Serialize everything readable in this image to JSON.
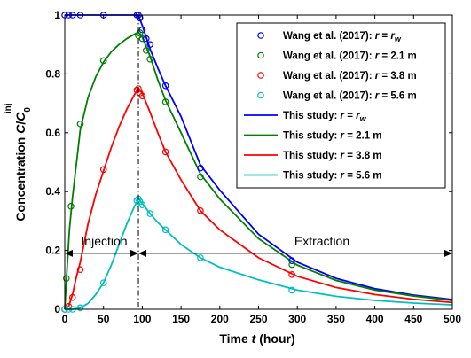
{
  "chart_data": {
    "type": "line",
    "xlabel_prefix": "Time ",
    "xlabel_var": "t",
    "xlabel_suffix": " (hour)",
    "ylabel_main": "Concentration ",
    "ylabel_var": "C",
    "ylabel_sep": "/",
    "ylabel_var2": "C",
    "ylabel_sub": "0",
    "ylabel_sup": "inj",
    "xlim": [
      0,
      500
    ],
    "ylim": [
      0,
      1
    ],
    "xticks": [
      0,
      50,
      100,
      150,
      200,
      250,
      300,
      350,
      400,
      450,
      500
    ],
    "yticks": [
      0,
      0.2,
      0.4,
      0.6,
      0.8,
      1
    ],
    "ytick_labels": [
      "0",
      "0.2",
      "0.4",
      "0.6",
      "0.8",
      "1"
    ],
    "legend_position": "top-right",
    "annotations": {
      "injection_label": "Injection",
      "extraction_label": "Extraction",
      "injection_range": [
        0,
        95
      ],
      "extraction_range": [
        95,
        500
      ],
      "arrow_y": 0.19,
      "switch_time": 95
    },
    "series": [
      {
        "kind": "markers",
        "legend_prefix": "Wang et al. (2017): ",
        "legend_var": "r",
        "legend_eq": " = ",
        "legend_var2": "r",
        "legend_sub": "w",
        "legend_value": "",
        "color": "#0000ff",
        "points": [
          [
            0,
            1
          ],
          [
            5,
            1
          ],
          [
            10,
            1
          ],
          [
            20,
            1
          ],
          [
            50,
            1
          ],
          [
            93,
            1
          ],
          [
            95,
            1
          ],
          [
            97,
            0.99
          ],
          [
            100,
            0.95
          ],
          [
            105,
            0.92
          ],
          [
            110,
            0.9
          ],
          [
            130,
            0.76
          ],
          [
            175,
            0.48
          ],
          [
            293,
            0.165
          ]
        ]
      },
      {
        "kind": "markers",
        "legend_prefix": "Wang et al. (2017): ",
        "legend_var": "r",
        "legend_eq": " = ",
        "legend_var2": "",
        "legend_sub": "",
        "legend_value": "2.1 m",
        "color": "#008000",
        "points": [
          [
            0,
            0
          ],
          [
            2,
            0.105
          ],
          [
            8,
            0.35
          ],
          [
            20,
            0.63
          ],
          [
            50,
            0.845
          ],
          [
            95,
            0.93
          ],
          [
            97,
            0.94
          ],
          [
            100,
            0.92
          ],
          [
            105,
            0.88
          ],
          [
            110,
            0.85
          ],
          [
            130,
            0.705
          ],
          [
            175,
            0.45
          ],
          [
            293,
            0.152
          ]
        ]
      },
      {
        "kind": "markers",
        "legend_prefix": "Wang et al. (2017): ",
        "legend_var": "r",
        "legend_eq": " = ",
        "legend_var2": "",
        "legend_sub": "",
        "legend_value": "3.8 m",
        "color": "#ff0000",
        "points": [
          [
            0,
            0
          ],
          [
            5,
            0.01
          ],
          [
            10,
            0.04
          ],
          [
            20,
            0.135
          ],
          [
            50,
            0.475
          ],
          [
            93,
            0.745
          ],
          [
            95,
            0.75
          ],
          [
            97,
            0.735
          ],
          [
            100,
            0.725
          ],
          [
            130,
            0.535
          ],
          [
            175,
            0.335
          ],
          [
            293,
            0.118
          ]
        ]
      },
      {
        "kind": "markers",
        "legend_prefix": "Wang et al. (2017): ",
        "legend_var": "r",
        "legend_eq": " = ",
        "legend_var2": "",
        "legend_sub": "",
        "legend_value": "5.6 m",
        "color": "#00bfbf",
        "points": [
          [
            0,
            0
          ],
          [
            5,
            0
          ],
          [
            10,
            0
          ],
          [
            20,
            0.005
          ],
          [
            50,
            0.09
          ],
          [
            93,
            0.37
          ],
          [
            95,
            0.375
          ],
          [
            97,
            0.365
          ],
          [
            100,
            0.355
          ],
          [
            110,
            0.325
          ],
          [
            130,
            0.27
          ],
          [
            175,
            0.175
          ],
          [
            293,
            0.065
          ]
        ]
      },
      {
        "kind": "line",
        "legend_prefix": "This study: ",
        "legend_var": "r",
        "legend_eq": " = ",
        "legend_var2": "r",
        "legend_sub": "w",
        "legend_value": "",
        "color": "#0000ff",
        "points": [
          [
            0,
            1
          ],
          [
            95,
            1
          ],
          [
            97,
            0.985
          ],
          [
            100,
            0.965
          ],
          [
            105,
            0.925
          ],
          [
            110,
            0.885
          ],
          [
            120,
            0.82
          ],
          [
            130,
            0.76
          ],
          [
            150,
            0.655
          ],
          [
            175,
            0.49
          ],
          [
            200,
            0.405
          ],
          [
            250,
            0.255
          ],
          [
            300,
            0.16
          ],
          [
            350,
            0.105
          ],
          [
            400,
            0.07
          ],
          [
            450,
            0.048
          ],
          [
            500,
            0.033
          ]
        ]
      },
      {
        "kind": "line",
        "legend_prefix": "This study: ",
        "legend_var": "r",
        "legend_eq": " = ",
        "legend_var2": "",
        "legend_sub": "",
        "legend_value": "2.1 m",
        "color": "#008000",
        "points": [
          [
            0,
            0
          ],
          [
            3,
            0.14
          ],
          [
            6,
            0.27
          ],
          [
            10,
            0.38
          ],
          [
            20,
            0.61
          ],
          [
            30,
            0.72
          ],
          [
            40,
            0.79
          ],
          [
            50,
            0.84
          ],
          [
            60,
            0.875
          ],
          [
            70,
            0.9
          ],
          [
            80,
            0.92
          ],
          [
            90,
            0.935
          ],
          [
            95,
            0.942
          ],
          [
            100,
            0.925
          ],
          [
            110,
            0.86
          ],
          [
            120,
            0.78
          ],
          [
            130,
            0.71
          ],
          [
            150,
            0.6
          ],
          [
            175,
            0.46
          ],
          [
            200,
            0.375
          ],
          [
            250,
            0.24
          ],
          [
            300,
            0.15
          ],
          [
            350,
            0.098
          ],
          [
            400,
            0.065
          ],
          [
            450,
            0.045
          ],
          [
            500,
            0.03
          ]
        ]
      },
      {
        "kind": "line",
        "legend_prefix": "This study: ",
        "legend_var": "r",
        "legend_eq": " = ",
        "legend_var2": "",
        "legend_sub": "",
        "legend_value": "3.8 m",
        "color": "#ff0000",
        "points": [
          [
            0,
            0
          ],
          [
            5,
            0.01
          ],
          [
            10,
            0.05
          ],
          [
            15,
            0.11
          ],
          [
            20,
            0.16
          ],
          [
            30,
            0.29
          ],
          [
            40,
            0.39
          ],
          [
            50,
            0.47
          ],
          [
            60,
            0.55
          ],
          [
            70,
            0.62
          ],
          [
            80,
            0.68
          ],
          [
            90,
            0.73
          ],
          [
            95,
            0.75
          ],
          [
            100,
            0.735
          ],
          [
            110,
            0.67
          ],
          [
            120,
            0.6
          ],
          [
            130,
            0.535
          ],
          [
            150,
            0.44
          ],
          [
            175,
            0.335
          ],
          [
            200,
            0.27
          ],
          [
            250,
            0.175
          ],
          [
            300,
            0.112
          ],
          [
            350,
            0.074
          ],
          [
            400,
            0.05
          ],
          [
            450,
            0.034
          ],
          [
            500,
            0.023
          ]
        ]
      },
      {
        "kind": "line",
        "legend_prefix": "This study: ",
        "legend_var": "r",
        "legend_eq": " = ",
        "legend_var2": "",
        "legend_sub": "",
        "legend_value": "5.6 m",
        "color": "#00bfbf",
        "points": [
          [
            0,
            0
          ],
          [
            10,
            0
          ],
          [
            20,
            0.005
          ],
          [
            30,
            0.02
          ],
          [
            40,
            0.05
          ],
          [
            50,
            0.09
          ],
          [
            60,
            0.15
          ],
          [
            70,
            0.22
          ],
          [
            80,
            0.29
          ],
          [
            90,
            0.35
          ],
          [
            95,
            0.375
          ],
          [
            100,
            0.36
          ],
          [
            110,
            0.325
          ],
          [
            120,
            0.295
          ],
          [
            130,
            0.27
          ],
          [
            150,
            0.22
          ],
          [
            175,
            0.175
          ],
          [
            200,
            0.143
          ],
          [
            250,
            0.1
          ],
          [
            300,
            0.065
          ],
          [
            350,
            0.044
          ],
          [
            400,
            0.03
          ],
          [
            450,
            0.021
          ],
          [
            500,
            0.015
          ]
        ]
      }
    ]
  }
}
